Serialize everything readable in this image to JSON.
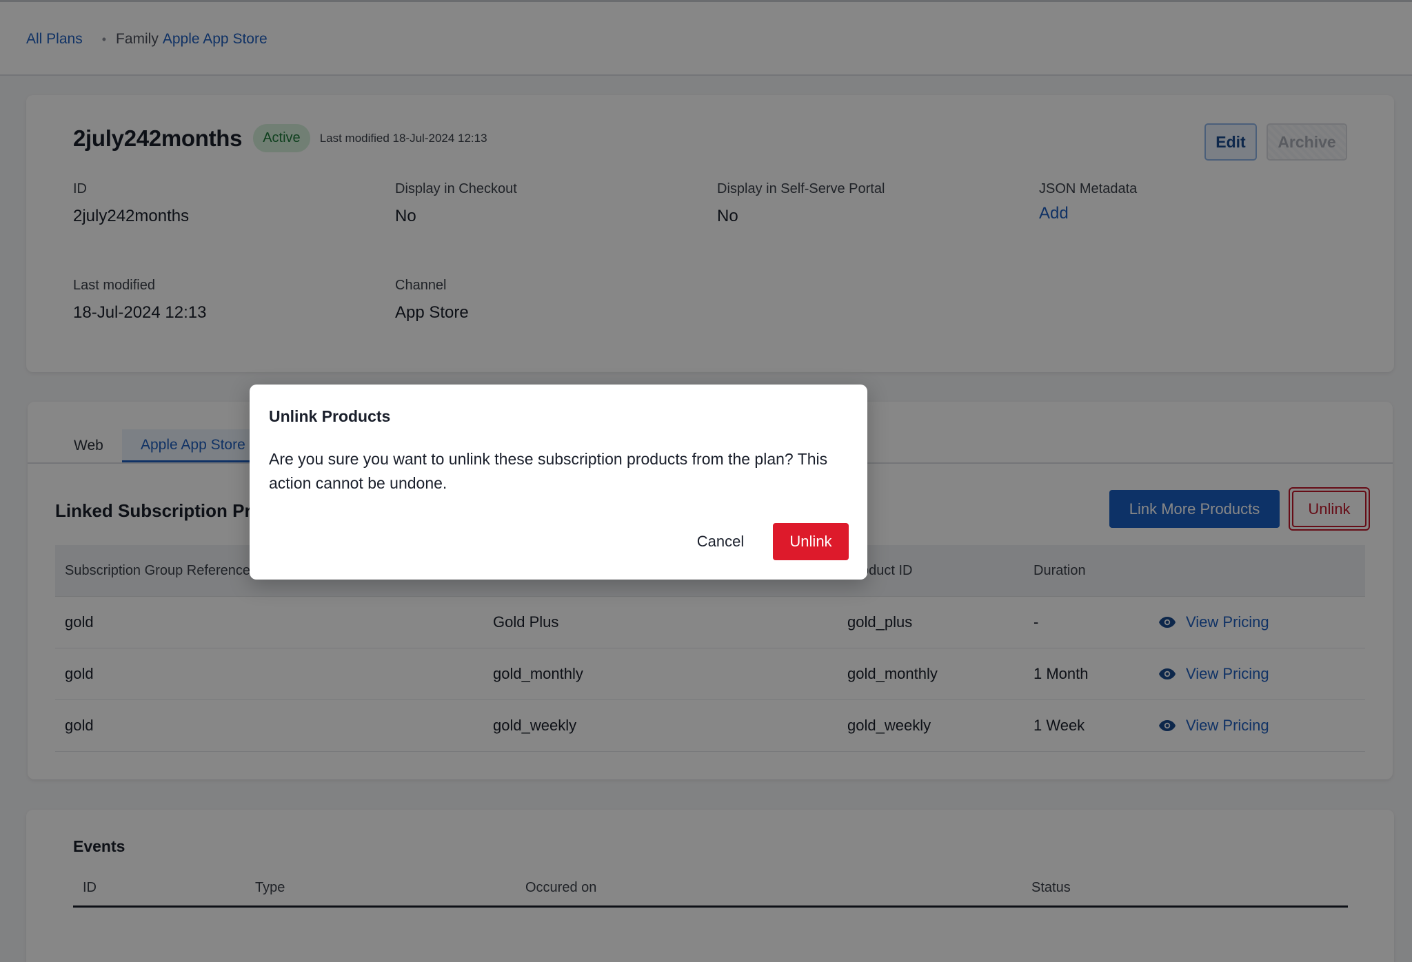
{
  "breadcrumb": {
    "all_plans": "All Plans",
    "family_label": "Family",
    "family_link": "Apple App Store"
  },
  "plan": {
    "title": "2july242months",
    "status": "Active",
    "last_modified_small": "Last modified 18-Jul-2024 12:13",
    "edit_label": "Edit",
    "archive_label": "Archive",
    "fields": {
      "id": {
        "label": "ID",
        "value": "2july242months"
      },
      "display_checkout": {
        "label": "Display in Checkout",
        "value": "No"
      },
      "display_portal": {
        "label": "Display in Self-Serve Portal",
        "value": "No"
      },
      "json_metadata": {
        "label": "JSON Metadata",
        "value": "Add"
      },
      "last_modified": {
        "label": "Last modified",
        "value": "18-Jul-2024 12:13"
      },
      "channel": {
        "label": "Channel",
        "value": "App Store"
      }
    }
  },
  "products": {
    "tabs": [
      "Web",
      "Apple App Store"
    ],
    "section_title": "Linked Subscription Products",
    "link_more_label": "Link More Products",
    "unlink_label": "Unlink",
    "columns": [
      "Subscription Group Reference",
      "",
      "Product ID",
      "Duration",
      ""
    ],
    "rows": [
      {
        "group": "gold",
        "name": "Gold Plus",
        "product_id": "gold_plus",
        "duration": "-",
        "action": "View Pricing"
      },
      {
        "group": "gold",
        "name": "gold_monthly",
        "product_id": "gold_monthly",
        "duration": "1 Month",
        "action": "View Pricing"
      },
      {
        "group": "gold",
        "name": "gold_weekly",
        "product_id": "gold_weekly",
        "duration": "1 Week",
        "action": "View Pricing"
      }
    ]
  },
  "events": {
    "title": "Events",
    "columns": [
      "ID",
      "Type",
      "Occured on",
      "Status"
    ]
  },
  "modal": {
    "title": "Unlink Products",
    "body": "Are you sure you want to unlink these subscription products from the plan? This action cannot be undone.",
    "cancel_label": "Cancel",
    "confirm_label": "Unlink"
  },
  "colors": {
    "primary": "#1a5fc2",
    "link": "#1f5fbf",
    "danger": "#dd1a2b",
    "success_bg": "#d6f0dc",
    "success_text": "#1d7a3a"
  },
  "icons": {
    "view_pricing": "eye-icon"
  }
}
